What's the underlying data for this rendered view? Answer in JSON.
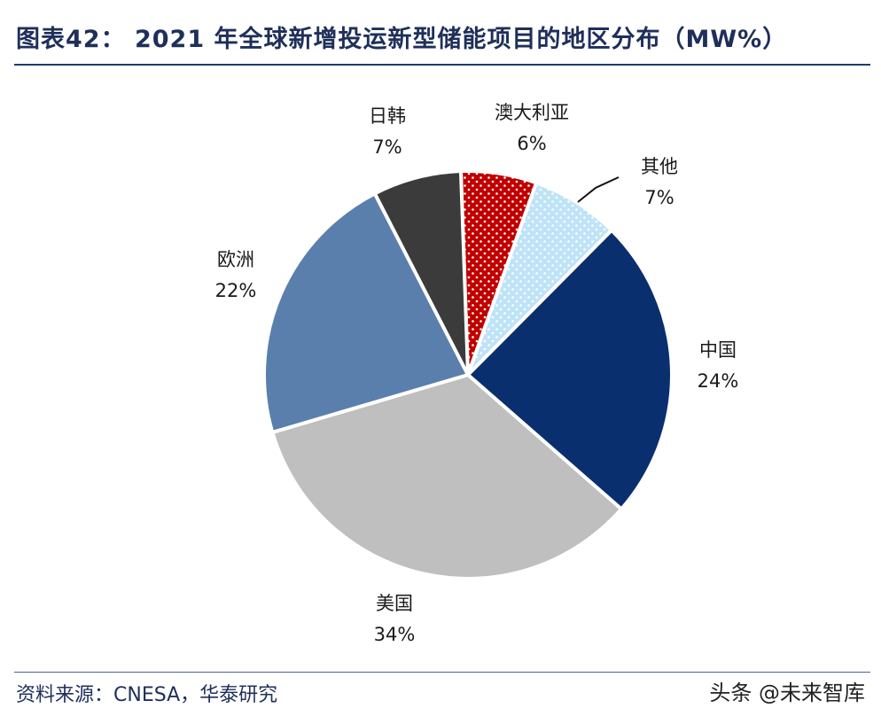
{
  "title": "图表42： 2021 年全球新增投运新型储能项目的地区分布（MW%）",
  "source": "资料来源：CNESA，华泰研究",
  "watermark": "头条 @未来智库",
  "chart_data": {
    "type": "pie",
    "title": "图表42： 2021 年全球新增投运新型储能项目的地区分布（MW%）",
    "slices": [
      {
        "label": "澳大利亚",
        "value": 6,
        "value_label": "6%",
        "color": "#c00000",
        "pattern": "white-dots"
      },
      {
        "label": "其他",
        "value": 7,
        "value_label": "7%",
        "color": "#bfe3f7",
        "pattern": "white-dots"
      },
      {
        "label": "中国",
        "value": 24,
        "value_label": "24%",
        "color": "#0a2f6f",
        "pattern": "none"
      },
      {
        "label": "美国",
        "value": 34,
        "value_label": "34%",
        "color": "#bfbfbf",
        "pattern": "none"
      },
      {
        "label": "欧洲",
        "value": 22,
        "value_label": "22%",
        "color": "#5a7fad",
        "pattern": "none"
      },
      {
        "label": "日韩",
        "value": 7,
        "value_label": "7%",
        "color": "#3b3b3b",
        "pattern": "none"
      }
    ],
    "start_angle_deg": -2,
    "direction": "clockwise",
    "legend": "none (labels placed beside slices)"
  }
}
